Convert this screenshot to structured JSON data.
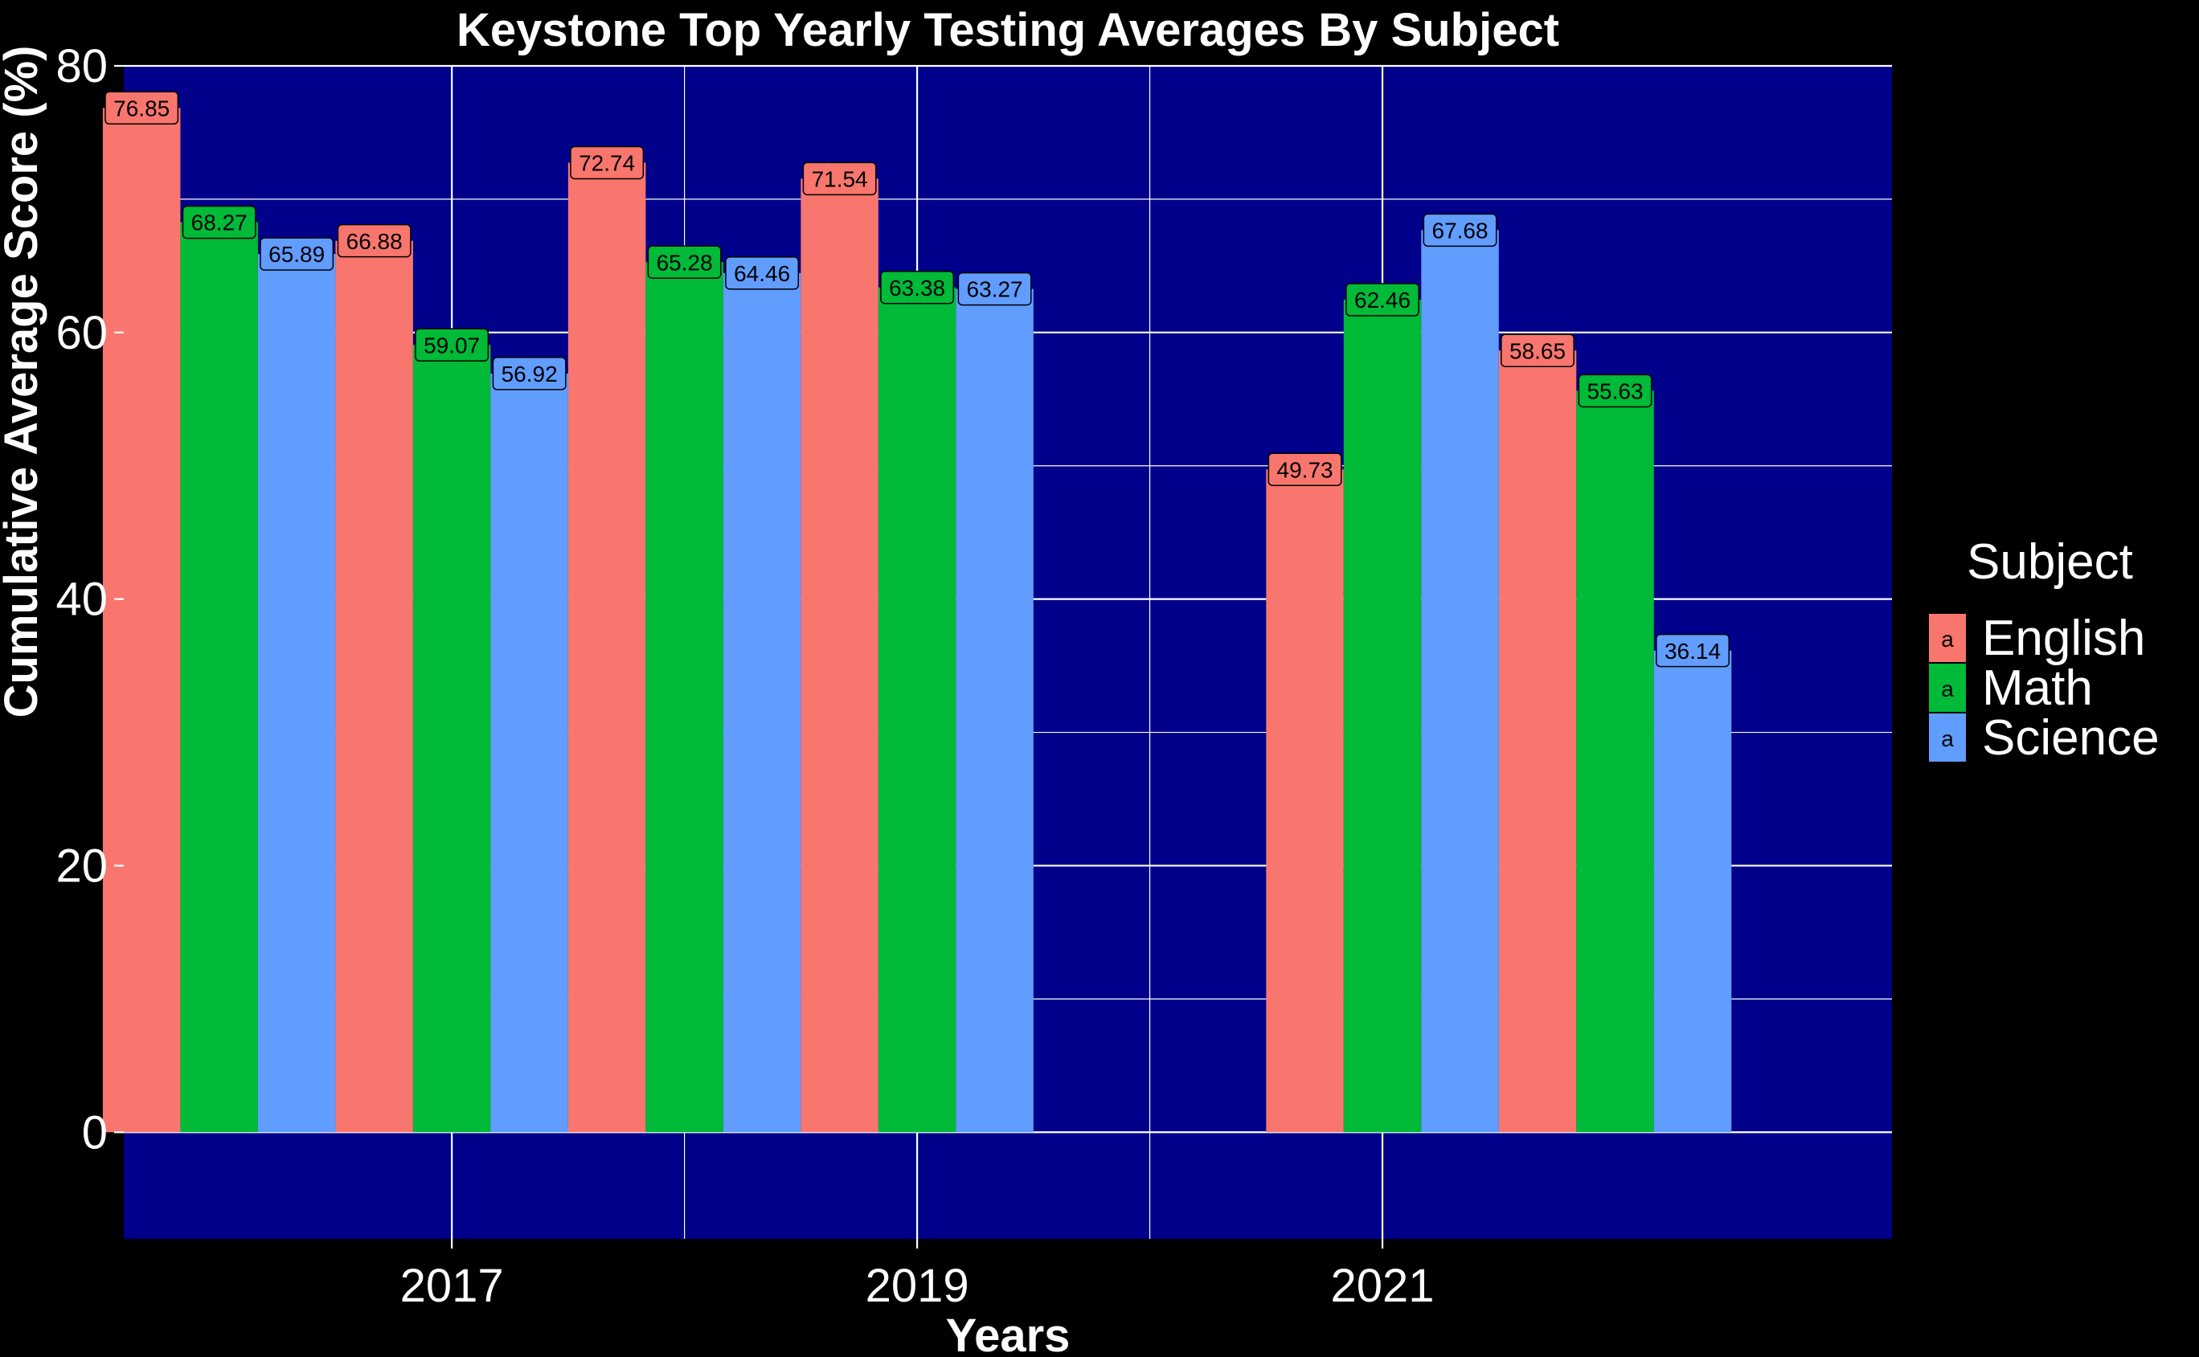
{
  "chart_data": {
    "type": "bar",
    "title": "Keystone Top Yearly Testing Averages By Subject",
    "xlabel": "Years",
    "ylabel": "Cumulative Average Score (%)",
    "ylim": [
      -8,
      80
    ],
    "yticks": [
      0,
      20,
      40,
      60,
      80
    ],
    "x_range": [
      2015.59,
      2023.19
    ],
    "xticks": [
      2017,
      2019,
      2021
    ],
    "grid": true,
    "background_color": "#00008B",
    "legend": {
      "title": "Subject",
      "placement": "right",
      "key_glyph": "a"
    },
    "series": [
      {
        "name": "English",
        "color": "#F8766D",
        "points": [
          {
            "x": 2016,
            "y": 76.85,
            "label": "76.85"
          },
          {
            "x": 2017,
            "y": 66.88,
            "label": "66.88"
          },
          {
            "x": 2018,
            "y": 72.74,
            "label": "72.74"
          },
          {
            "x": 2019,
            "y": 71.54,
            "label": "71.54"
          },
          {
            "x": 2021,
            "y": 49.73,
            "label": "49.73"
          },
          {
            "x": 2022,
            "y": 58.65,
            "label": "58.65"
          }
        ]
      },
      {
        "name": "Math",
        "color": "#00BA38",
        "points": [
          {
            "x": 2016,
            "y": 68.27,
            "label": "68.27"
          },
          {
            "x": 2017,
            "y": 59.07,
            "label": "59.07"
          },
          {
            "x": 2018,
            "y": 65.28,
            "label": "65.28"
          },
          {
            "x": 2019,
            "y": 63.38,
            "label": "63.38"
          },
          {
            "x": 2021,
            "y": 62.46,
            "label": "62.46"
          },
          {
            "x": 2022,
            "y": 55.63,
            "label": "55.63"
          }
        ]
      },
      {
        "name": "Science",
        "color": "#619CFF",
        "points": [
          {
            "x": 2016,
            "y": 65.89,
            "label": "65.89"
          },
          {
            "x": 2017,
            "y": 56.92,
            "label": "56.92"
          },
          {
            "x": 2018,
            "y": 64.46,
            "label": "64.46"
          },
          {
            "x": 2019,
            "y": 63.27,
            "label": "63.27"
          },
          {
            "x": 2021,
            "y": 67.68,
            "label": "67.68"
          },
          {
            "x": 2022,
            "y": 36.14,
            "label": "36.14"
          }
        ]
      }
    ]
  }
}
